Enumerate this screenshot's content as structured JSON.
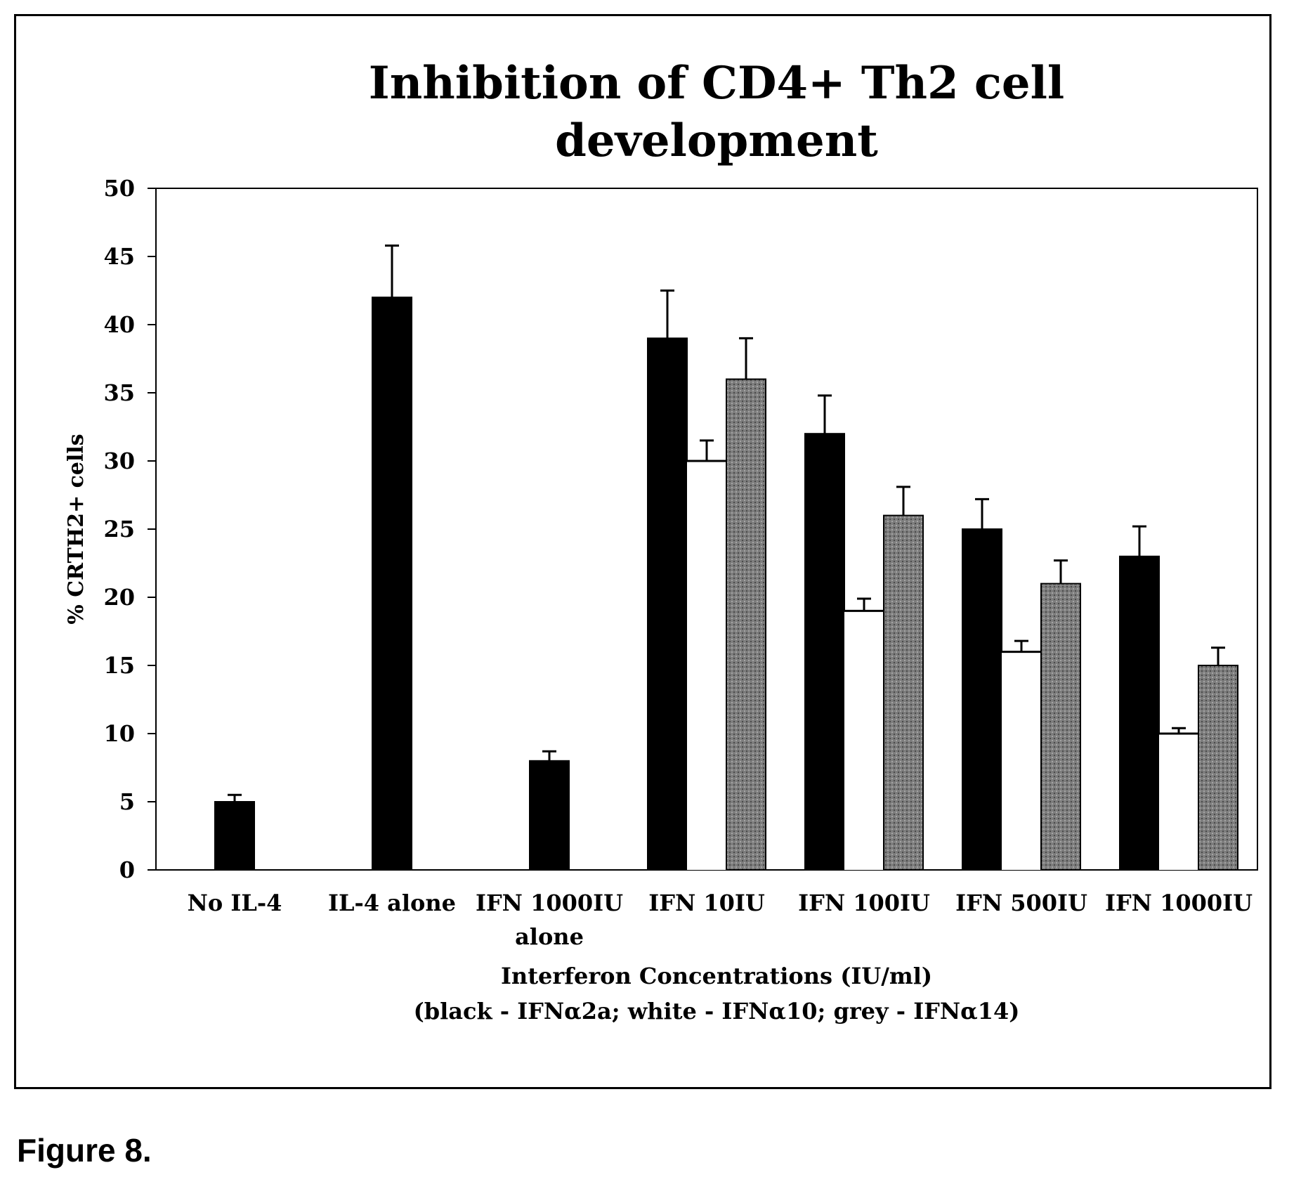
{
  "figure_caption": "Figure 8.",
  "colors": {
    "black": "#000000",
    "white": "#ffffff",
    "grey": "#8a8a8a"
  },
  "chart_data": {
    "type": "bar",
    "title": "Inhibition of CD4+ Th2 cell development",
    "title_lines": [
      "Inhibition of CD4+ Th2 cell",
      "development"
    ],
    "ylabel": "% CRTH2+ cells",
    "xlabel": "Interferon Concentrations (IU/ml)",
    "xlabel_note": "(black - IFNα2a; white - IFNα10; grey - IFNα14)",
    "ylim": [
      0,
      50
    ],
    "yticks": [
      0,
      5,
      10,
      15,
      20,
      25,
      30,
      35,
      40,
      45,
      50
    ],
    "grid": false,
    "categories": [
      "No IL-4",
      "IL-4 alone",
      "IFN 1000IU alone",
      "IFN 10IU",
      "IFN 100IU",
      "IFN 500IU",
      "IFN 1000IU"
    ],
    "category_label_lines": [
      [
        "No IL-4"
      ],
      [
        "IL-4 alone"
      ],
      [
        "IFN 1000IU",
        "alone"
      ],
      [
        "IFN 10IU"
      ],
      [
        "IFN 100IU"
      ],
      [
        "IFN 500IU"
      ],
      [
        "IFN 1000IU"
      ]
    ],
    "series": [
      {
        "color": "black",
        "values": [
          5,
          42,
          8,
          39,
          32,
          25,
          23
        ],
        "errors": [
          0.5,
          3.8,
          0.7,
          3.5,
          2.8,
          2.2,
          2.2
        ]
      },
      {
        "color": "white",
        "values": [
          null,
          null,
          null,
          30,
          19,
          16,
          10
        ],
        "errors": [
          null,
          null,
          null,
          1.5,
          0.9,
          0.8,
          0.4
        ]
      },
      {
        "color": "grey",
        "values": [
          null,
          null,
          null,
          36,
          26,
          21,
          15
        ],
        "errors": [
          null,
          null,
          null,
          3.0,
          2.1,
          1.7,
          1.3
        ]
      }
    ]
  }
}
